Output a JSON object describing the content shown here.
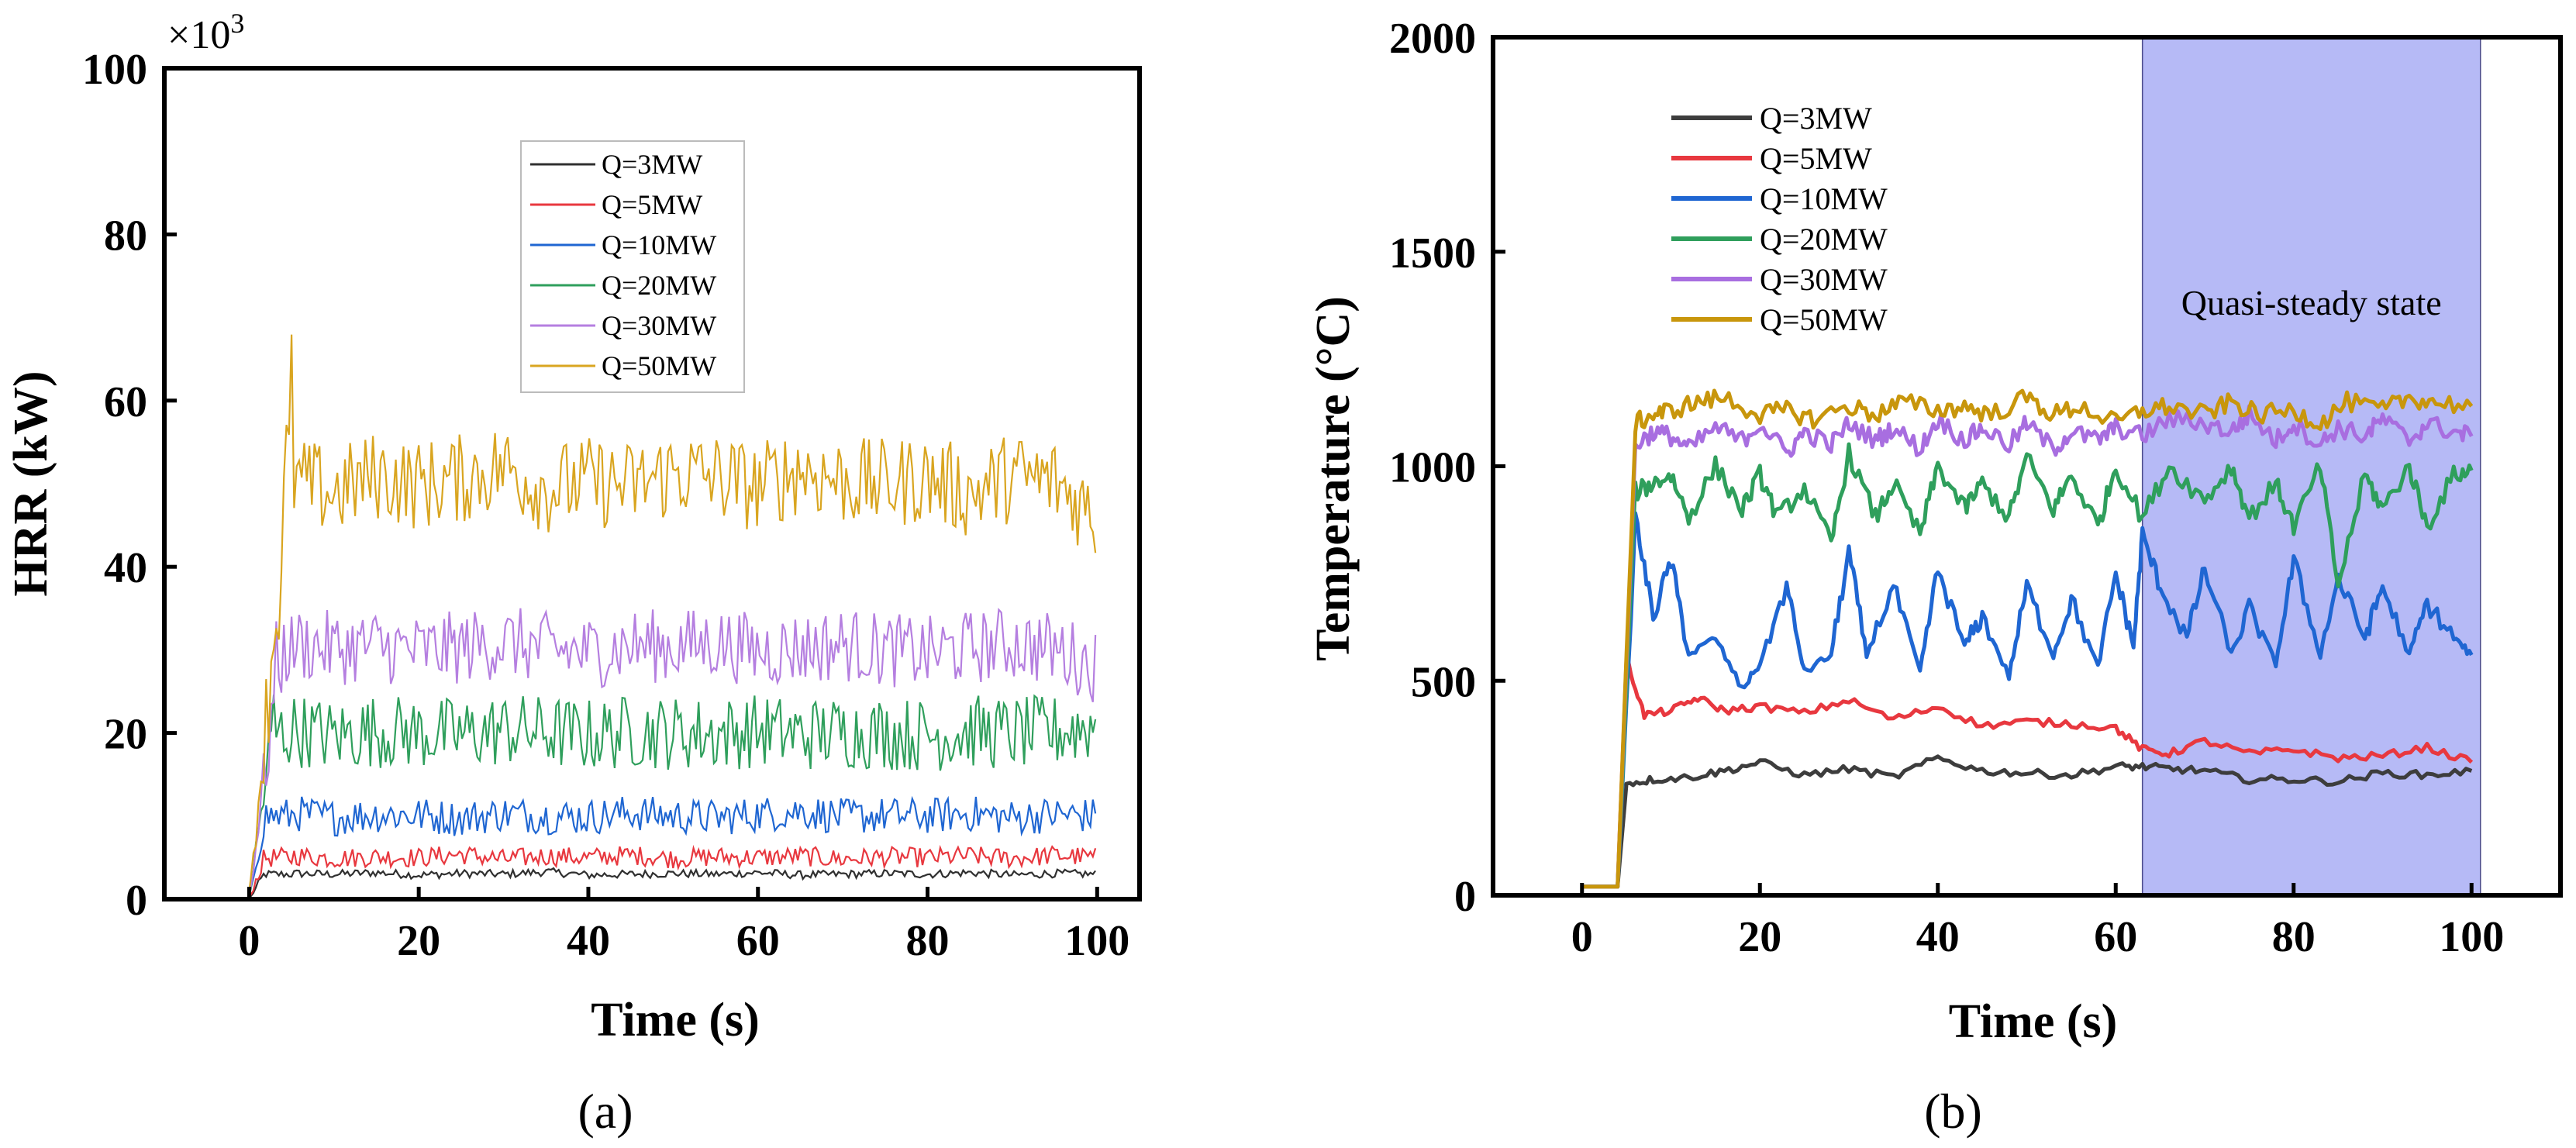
{
  "chart_data": [
    {
      "type": "line",
      "panel_label": "(a)",
      "xlabel": "Time (s)",
      "ylabel": "HRR (kW)",
      "y_multiplier": "×10",
      "y_multiplier_exp": "3",
      "xlim": [
        -10,
        105
      ],
      "ylim": [
        0,
        100
      ],
      "xticks": [
        0,
        20,
        40,
        60,
        80,
        100
      ],
      "yticks": [
        0,
        20,
        40,
        60,
        80,
        100
      ],
      "legend_position": "top-center",
      "series": [
        {
          "name": "Q=3MW",
          "color": "#303030",
          "ramp_end": 2,
          "mean": 3,
          "fluct": 0.5,
          "x": [
            0,
            5,
            10,
            15,
            20,
            25,
            30,
            35,
            40,
            45,
            50,
            55,
            60,
            65,
            70,
            75,
            80,
            85,
            90,
            95,
            100
          ],
          "y": [
            0,
            3.1,
            3.0,
            3.2,
            2.9,
            3.1,
            3.0,
            3.3,
            2.9,
            3.0,
            3.1,
            3.0,
            3.2,
            2.9,
            3.0,
            3.1,
            3.0,
            3.2,
            2.9,
            3.1,
            3.0
          ]
        },
        {
          "name": "Q=5MW",
          "color": "#e8383f",
          "ramp_end": 2,
          "mean": 5,
          "fluct": 1.2,
          "x": [
            0,
            5,
            10,
            15,
            20,
            25,
            30,
            35,
            40,
            45,
            50,
            55,
            60,
            65,
            70,
            75,
            80,
            85,
            90,
            95,
            100
          ],
          "y": [
            0,
            5.3,
            4.9,
            5.1,
            5.0,
            5.4,
            4.8,
            5.2,
            5.0,
            5.3,
            4.9,
            5.1,
            5.0,
            5.2,
            4.8,
            5.1,
            5.0,
            5.2,
            4.9,
            5.3,
            5.0
          ]
        },
        {
          "name": "Q=10MW",
          "color": "#1f66d2",
          "ramp_end": 2,
          "mean": 10,
          "fluct": 2.2,
          "x": [
            0,
            5,
            10,
            15,
            20,
            25,
            30,
            35,
            40,
            45,
            50,
            55,
            60,
            65,
            70,
            75,
            80,
            85,
            90,
            95,
            100
          ],
          "y": [
            0,
            10.4,
            9.8,
            10.2,
            10.1,
            9.7,
            10.3,
            10.0,
            9.9,
            10.4,
            10.0,
            9.8,
            10.2,
            10.6,
            9.9,
            10.1,
            10.0,
            10.3,
            9.8,
            10.2,
            10.0
          ]
        },
        {
          "name": "Q=20MW",
          "color": "#2f9f5c",
          "ramp_end": 3,
          "mean": 20,
          "fluct": 4.5,
          "x": [
            0,
            5,
            10,
            15,
            20,
            25,
            30,
            35,
            40,
            45,
            50,
            55,
            60,
            65,
            70,
            75,
            80,
            85,
            90,
            95,
            100
          ],
          "y": [
            0,
            20.5,
            19.6,
            20.3,
            20.0,
            19.8,
            20.4,
            20.1,
            19.7,
            20.2,
            20.0,
            19.9,
            20.3,
            19.8,
            20.1,
            20.0,
            19.7,
            20.2,
            19.9,
            20.1,
            21.0
          ]
        },
        {
          "name": "Q=30MW",
          "color": "#b57fe0",
          "ramp_end": 4,
          "mean": 30,
          "fluct": 4.5,
          "x": [
            0,
            5,
            10,
            15,
            20,
            25,
            30,
            35,
            40,
            45,
            50,
            55,
            60,
            65,
            70,
            75,
            80,
            85,
            90,
            95,
            100
          ],
          "y": [
            0,
            30.8,
            30.2,
            30.5,
            29.8,
            30.3,
            31.0,
            30.1,
            29.7,
            30.6,
            30.4,
            30.9,
            29.9,
            30.2,
            30.7,
            30.0,
            29.6,
            30.3,
            30.8,
            30.1,
            28.0
          ]
        },
        {
          "name": "Q=50MW",
          "color": "#d9a520",
          "ramp_end": 5,
          "mean": 50,
          "fluct": 5.5,
          "x": [
            0,
            5,
            10,
            15,
            20,
            25,
            30,
            35,
            40,
            45,
            50,
            55,
            60,
            65,
            70,
            75,
            80,
            85,
            90,
            95,
            100
          ],
          "y": [
            0,
            50.5,
            48.9,
            51.0,
            49.8,
            50.6,
            52.1,
            49.4,
            50.2,
            49.7,
            51.3,
            50.8,
            49.5,
            51.8,
            50.3,
            49.9,
            50.7,
            48.8,
            50.9,
            50.2,
            46.0
          ]
        }
      ]
    },
    {
      "type": "line",
      "panel_label": "(b)",
      "xlabel": "Time (s)",
      "ylabel": "Temperature (°C)",
      "xlim": [
        -10,
        110
      ],
      "ylim": [
        0,
        2000
      ],
      "xticks": [
        0,
        20,
        40,
        60,
        80,
        100
      ],
      "yticks": [
        0,
        500,
        1000,
        1500,
        2000
      ],
      "legend_position": "top-left",
      "shaded_region": {
        "x_start": 63,
        "x_end": 101,
        "label": "Quasi-steady state",
        "color": "#b6baf6"
      },
      "series": [
        {
          "name": "Q=3MW",
          "color": "#3d3d3d",
          "x": [
            0,
            3,
            4,
            5,
            8,
            12,
            16,
            20,
            25,
            30,
            35,
            40,
            45,
            50,
            55,
            60,
            63,
            66,
            70,
            75,
            80,
            85,
            90,
            95,
            100
          ],
          "y": [
            20,
            20,
            20,
            260,
            270,
            275,
            290,
            310,
            280,
            295,
            275,
            320,
            290,
            285,
            280,
            300,
            300,
            295,
            290,
            270,
            270,
            265,
            285,
            280,
            290
          ]
        },
        {
          "name": "Q=5MW",
          "color": "#e8383f",
          "x": [
            0,
            3,
            4,
            5,
            7,
            10,
            13,
            16,
            20,
            25,
            30,
            35,
            40,
            45,
            50,
            55,
            60,
            63,
            66,
            70,
            75,
            80,
            85,
            90,
            95,
            100
          ],
          "y": [
            20,
            20,
            20,
            550,
            420,
            430,
            460,
            430,
            440,
            425,
            455,
            410,
            440,
            395,
            405,
            400,
            390,
            340,
            330,
            360,
            330,
            340,
            320,
            325,
            345,
            310
          ]
        },
        {
          "name": "Q=10MW",
          "color": "#1f66d2",
          "x": [
            0,
            3,
            4,
            6,
            8,
            10,
            12,
            15,
            18,
            20,
            23,
            25,
            28,
            30,
            32,
            35,
            38,
            40,
            43,
            45,
            48,
            50,
            53,
            55,
            58,
            60,
            62,
            63,
            65,
            68,
            70,
            73,
            75,
            78,
            80,
            83,
            85,
            88,
            90,
            93,
            95,
            98,
            100
          ],
          "y": [
            20,
            20,
            20,
            880,
            650,
            780,
            560,
            600,
            480,
            540,
            720,
            520,
            560,
            800,
            560,
            720,
            520,
            760,
            580,
            650,
            510,
            720,
            560,
            690,
            530,
            750,
            580,
            840,
            720,
            600,
            760,
            560,
            670,
            540,
            780,
            560,
            740,
            600,
            720,
            560,
            680,
            600,
            560
          ]
        },
        {
          "name": "Q=20MW",
          "color": "#2f9f5c",
          "x": [
            0,
            3,
            4,
            6,
            8,
            10,
            12,
            15,
            18,
            20,
            22,
            25,
            28,
            30,
            33,
            35,
            38,
            40,
            43,
            45,
            48,
            50,
            53,
            55,
            58,
            60,
            63,
            66,
            70,
            73,
            75,
            78,
            80,
            83,
            85,
            88,
            90,
            93,
            95,
            98,
            100
          ],
          "y": [
            20,
            20,
            20,
            940,
            960,
            980,
            880,
            1000,
            900,
            980,
            880,
            950,
            820,
            1030,
            880,
            960,
            840,
            1000,
            900,
            960,
            880,
            1020,
            900,
            980,
            860,
            1000,
            880,
            1000,
            920,
            1000,
            880,
            960,
            860,
            1000,
            720,
            980,
            900,
            1000,
            860,
            980,
            990
          ]
        },
        {
          "name": "Q=30MW",
          "color": "#a86ee0",
          "x": [
            0,
            3,
            4,
            6,
            8,
            10,
            12,
            15,
            18,
            20,
            23,
            25,
            28,
            30,
            33,
            35,
            38,
            40,
            43,
            45,
            48,
            50,
            53,
            55,
            58,
            60,
            63,
            66,
            70,
            73,
            75,
            78,
            80,
            83,
            85,
            88,
            90,
            93,
            95,
            98,
            100
          ],
          "y": [
            20,
            20,
            20,
            1050,
            1080,
            1070,
            1040,
            1090,
            1060,
            1100,
            1030,
            1080,
            1050,
            1100,
            1060,
            1090,
            1040,
            1110,
            1060,
            1090,
            1050,
            1100,
            1040,
            1080,
            1060,
            1090,
            1070,
            1110,
            1100,
            1080,
            1120,
            1060,
            1100,
            1050,
            1090,
            1070,
            1110,
            1060,
            1100,
            1080,
            1070
          ]
        },
        {
          "name": "Q=50MW",
          "color": "#c8960c",
          "x": [
            0,
            3,
            4,
            6,
            8,
            10,
            13,
            16,
            20,
            23,
            26,
            30,
            33,
            36,
            40,
            43,
            46,
            50,
            53,
            56,
            60,
            63,
            66,
            70,
            73,
            76,
            80,
            83,
            86,
            90,
            93,
            96,
            100
          ],
          "y": [
            20,
            20,
            20,
            1100,
            1120,
            1130,
            1150,
            1160,
            1120,
            1130,
            1110,
            1140,
            1120,
            1150,
            1130,
            1140,
            1120,
            1160,
            1120,
            1140,
            1100,
            1130,
            1140,
            1120,
            1150,
            1120,
            1130,
            1100,
            1150,
            1130,
            1160,
            1150,
            1140
          ]
        }
      ]
    }
  ]
}
